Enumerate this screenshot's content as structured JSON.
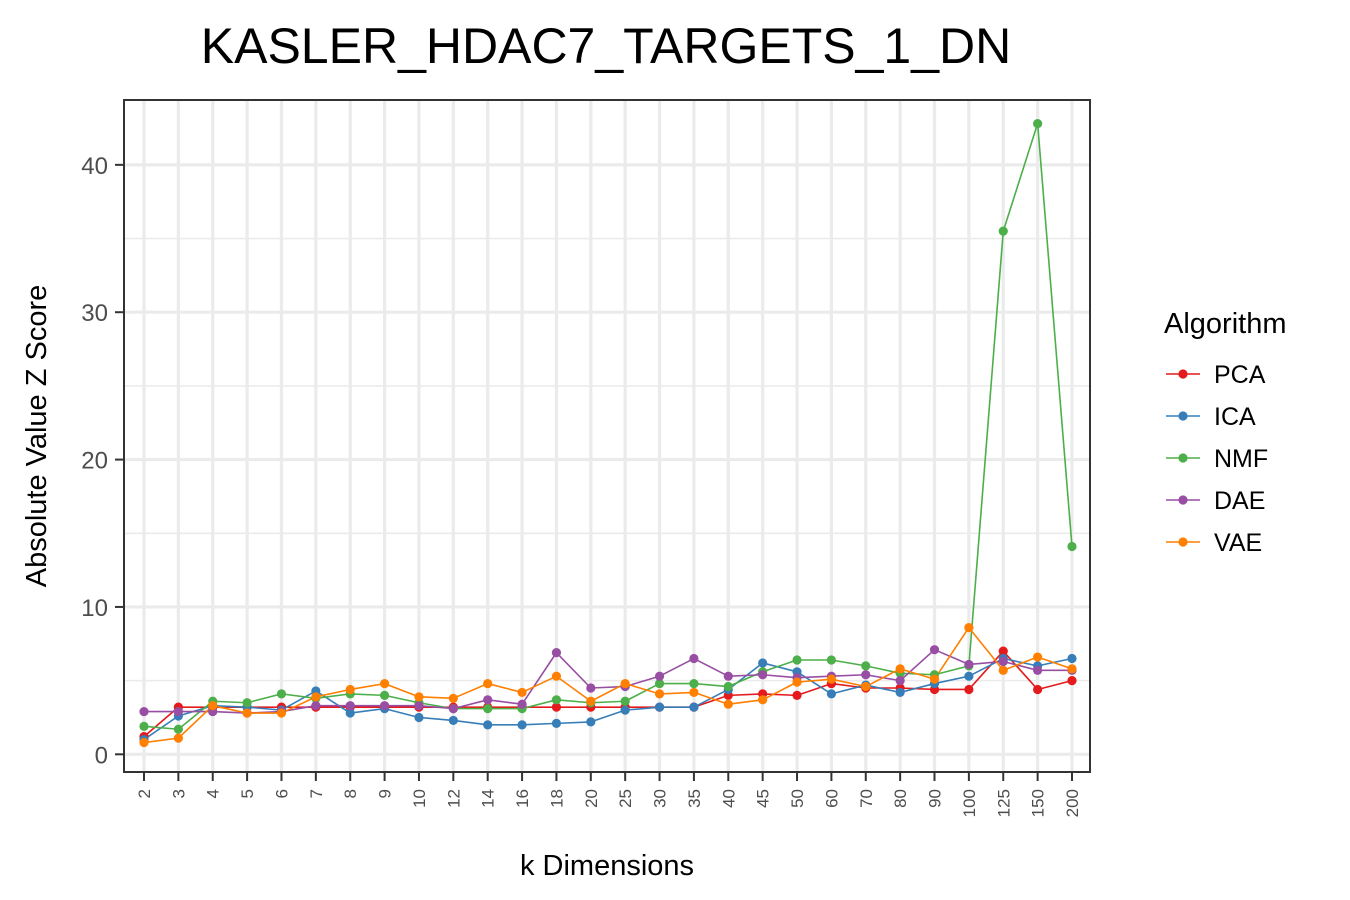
{
  "chart_data": {
    "type": "line",
    "title": "KASLER_HDAC7_TARGETS_1_DN",
    "xlabel": "k Dimensions",
    "ylabel": "Absolute Value Z Score",
    "categories": [
      "2",
      "3",
      "4",
      "5",
      "6",
      "7",
      "8",
      "9",
      "10",
      "12",
      "14",
      "16",
      "18",
      "20",
      "25",
      "30",
      "35",
      "40",
      "45",
      "50",
      "60",
      "70",
      "80",
      "90",
      "100",
      "125",
      "150",
      "200"
    ],
    "ylim": [
      -1.2,
      44.4
    ],
    "yticks": [
      0,
      10,
      20,
      30,
      40
    ],
    "ytick_labels": [
      "0",
      "10",
      "20",
      "30",
      "40"
    ],
    "grid": true,
    "legend": {
      "title": "Algorithm",
      "position": "right"
    },
    "series": [
      {
        "name": "PCA",
        "color": "#e41a1c",
        "values": [
          1.2,
          3.2,
          3.2,
          3.2,
          3.2,
          3.2,
          3.2,
          3.2,
          3.2,
          3.2,
          3.2,
          3.2,
          3.2,
          3.2,
          3.2,
          3.2,
          3.2,
          4.0,
          4.1,
          4.0,
          4.8,
          4.5,
          4.5,
          4.4,
          4.4,
          7.0,
          4.4,
          5.0
        ]
      },
      {
        "name": "ICA",
        "color": "#377eb8",
        "values": [
          1.0,
          2.6,
          3.3,
          3.2,
          3.0,
          4.3,
          2.8,
          3.1,
          2.5,
          2.3,
          2.0,
          2.0,
          2.1,
          2.2,
          3.0,
          3.2,
          3.2,
          4.4,
          6.2,
          5.6,
          4.1,
          4.7,
          4.2,
          4.8,
          5.3,
          6.5,
          6.0,
          6.5
        ]
      },
      {
        "name": "NMF",
        "color": "#4daf4a",
        "values": [
          1.9,
          1.7,
          3.6,
          3.5,
          4.1,
          3.8,
          4.1,
          4.0,
          3.5,
          3.1,
          3.1,
          3.1,
          3.7,
          3.5,
          3.6,
          4.8,
          4.8,
          4.6,
          5.6,
          6.4,
          6.4,
          6.0,
          5.5,
          5.4,
          6.0,
          35.5,
          42.8,
          14.1
        ]
      },
      {
        "name": "DAE",
        "color": "#984ea3",
        "values": [
          2.9,
          2.9,
          2.9,
          2.8,
          2.9,
          3.3,
          3.3,
          3.3,
          3.3,
          3.1,
          3.7,
          3.4,
          6.9,
          4.5,
          4.6,
          5.3,
          6.5,
          5.3,
          5.4,
          5.2,
          5.3,
          5.4,
          5.0,
          7.1,
          6.1,
          6.3,
          5.7,
          5.7
        ]
      },
      {
        "name": "VAE",
        "color": "#ff7f00",
        "values": [
          0.8,
          1.1,
          3.3,
          2.8,
          2.8,
          3.9,
          4.4,
          4.8,
          3.9,
          3.8,
          4.8,
          4.2,
          5.3,
          3.6,
          4.8,
          4.1,
          4.2,
          3.4,
          3.7,
          4.9,
          5.1,
          4.6,
          5.8,
          5.1,
          8.6,
          5.7,
          6.6,
          5.8
        ]
      }
    ]
  }
}
